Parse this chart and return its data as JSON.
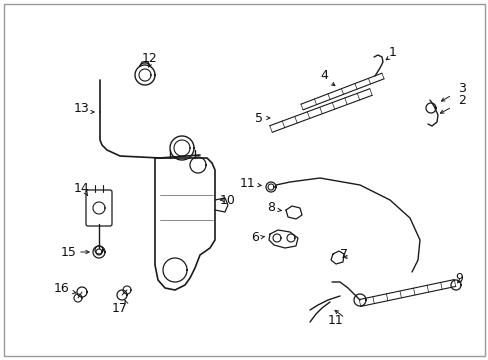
{
  "bg_color": "#ffffff",
  "border_color": "#aaaaaa",
  "line_color": "#1a1a1a",
  "text_color": "#111111",
  "figsize": [
    4.89,
    3.6
  ],
  "dpi": 100,
  "font_size": 9
}
